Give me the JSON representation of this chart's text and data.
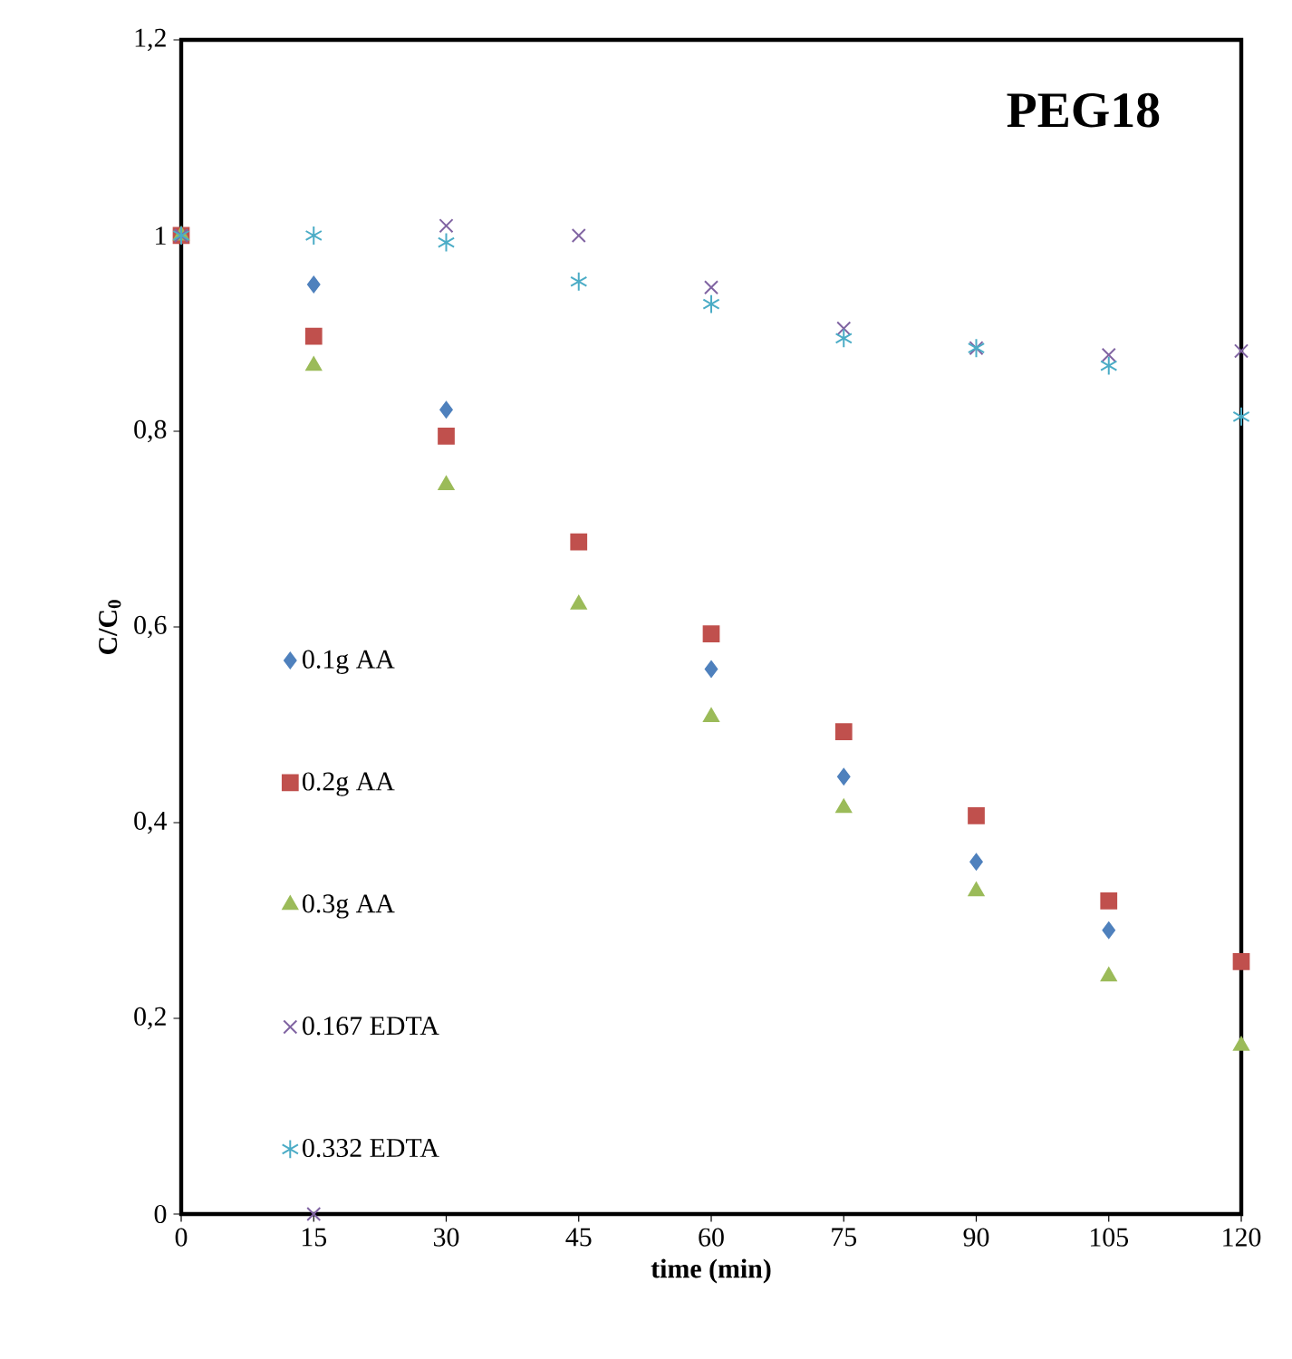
{
  "chart_data": {
    "type": "scatter",
    "title": "PEG18",
    "xlabel": "time (min)",
    "ylabel": "C/C$_{0}$",
    "x": [
      0,
      15,
      30,
      45,
      60,
      75,
      90,
      105,
      120
    ],
    "series": [
      {
        "name": "0.1g AA",
        "color": "#4f81bd",
        "marker": "diamond",
        "values": [
          null,
          0.95,
          0.822,
          null,
          0.557,
          0.447,
          0.36,
          0.29,
          null
        ]
      },
      {
        "name": "0.2g AA",
        "color": "#c0504d",
        "marker": "square",
        "values": [
          1,
          0.897,
          0.795,
          0.687,
          0.593,
          0.493,
          0.407,
          0.32,
          0.258
        ]
      },
      {
        "name": "0.3g AA",
        "color": "#9bbb59",
        "marker": "triangle",
        "values": [
          1,
          0.867,
          0.745,
          0.623,
          0.508,
          0.415,
          0.33,
          0.243,
          0.172
        ]
      },
      {
        "name": "0.167 EDTA",
        "color": "#8064a2",
        "marker": "cross",
        "values": [
          1,
          0,
          1.01,
          1.0,
          0.947,
          0.905,
          0.885,
          0.878,
          0.882
        ]
      },
      {
        "name": "0.332 EDTA",
        "color": "#4bacc6",
        "values": [
          1,
          1.0,
          0.993,
          0.953,
          0.93,
          0.895,
          0.885,
          0.867,
          0.815
        ]
      }
    ],
    "xlim": [
      0,
      120
    ],
    "xticks": [
      0,
      15,
      30,
      45,
      60,
      75,
      90,
      105,
      120
    ],
    "ylim": [
      0,
      1.2
    ],
    "yticks": [
      0,
      {
        "value": 0.2,
        "label": "0,2"
      },
      {
        "value": 0.4,
        "label": "0,4"
      },
      {
        "value": 0.6,
        "label": "0,6"
      },
      {
        "value": 0.8,
        "label": "0,8"
      },
      1,
      {
        "value": 1.2,
        "label": "1,2"
      }
    ],
    "grid": false,
    "legend": "left"
  }
}
